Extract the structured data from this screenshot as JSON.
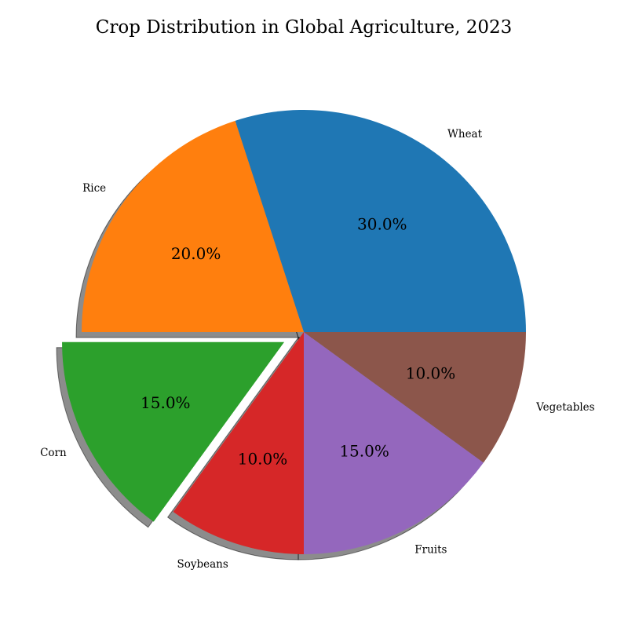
{
  "chart_data": {
    "type": "pie",
    "title": "Crop Distribution in Global Agriculture, 2023",
    "categories": [
      "Wheat",
      "Rice",
      "Corn",
      "Soybeans",
      "Fruits",
      "Vegetables"
    ],
    "values": [
      30,
      20,
      15,
      10,
      15,
      10
    ],
    "percent_labels": [
      "30.0%",
      "20.0%",
      "15.0%",
      "10.0%",
      "15.0%",
      "10.0%"
    ],
    "colors": [
      "#1f77b4",
      "#ff7f0e",
      "#2ca02c",
      "#d62728",
      "#9467bd",
      "#8c564b"
    ],
    "exploded": [
      "Corn"
    ],
    "shadow": true,
    "start_angle_deg": 0,
    "direction": "counterclockwise",
    "legend": false
  }
}
